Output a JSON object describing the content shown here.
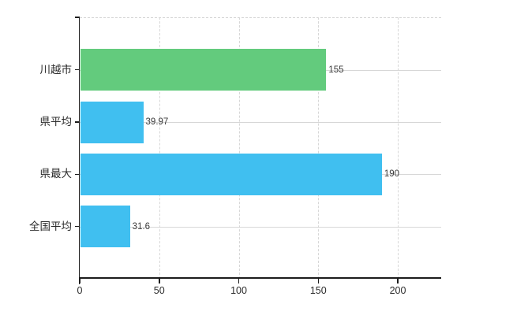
{
  "chart_data": {
    "type": "bar",
    "orientation": "horizontal",
    "title": "",
    "categories": [
      "川越市",
      "県平均",
      "県最大",
      "全国平均"
    ],
    "values": [
      155,
      39.97,
      190,
      31.6
    ],
    "value_labels": [
      "155",
      "39.97",
      "190",
      "31.6"
    ],
    "x_ticks": [
      0,
      50,
      100,
      150,
      200
    ],
    "x_tick_labels": [
      "0",
      "50",
      "100",
      "150",
      "200"
    ],
    "xlim": [
      0,
      227
    ],
    "grid": {
      "vertical_style": "dashed",
      "horizontal_style": "solid",
      "plot_top_border": "dashed",
      "gridline_color": "#d7d7d7"
    },
    "legend": "none",
    "rows": [
      {
        "label": "川越市",
        "value": 155,
        "value_label": "155",
        "color": "#63cb7d"
      },
      {
        "label": "県平均",
        "value": 39.97,
        "value_label": "39.97",
        "color": "#40bff0"
      },
      {
        "label": "県最大",
        "value": 190,
        "value_label": "190",
        "color": "#40bff0"
      },
      {
        "label": "全国平均",
        "value": 31.6,
        "value_label": "31.6",
        "color": "#40bff0"
      }
    ]
  },
  "colors": {
    "highlight_bar": "#63cb7d",
    "default_bar": "#40bff0",
    "gridline": "#d7d7d7",
    "axis": "#1c1c1c",
    "label_text": "#2b2b2b"
  }
}
